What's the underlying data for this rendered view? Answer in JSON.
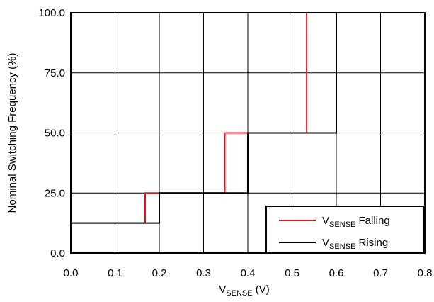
{
  "chart_data": {
    "type": "line",
    "step": true,
    "title": "",
    "xlabel": {
      "main": "V",
      "sub": "SENSE",
      "suffix": " (V)"
    },
    "ylabel": "Nominal Switching Frequency (%)",
    "xlim": [
      0,
      0.8
    ],
    "ylim": [
      0,
      100
    ],
    "xticks": [
      0.0,
      0.1,
      0.2,
      0.3,
      0.4,
      0.5,
      0.6,
      0.7,
      0.8
    ],
    "xtick_labels": [
      "0.0",
      "0.1",
      "0.2",
      "0.3",
      "0.4",
      "0.5",
      "0.6",
      "0.7",
      "0.8"
    ],
    "yticks": [
      0,
      25,
      50,
      75,
      100
    ],
    "ytick_labels": [
      "0.0",
      "25.0",
      "50.0",
      "75.0",
      "100.0"
    ],
    "grid": true,
    "legend_position": "bottom-right",
    "series": [
      {
        "name": {
          "main": "V",
          "sub": "SENSE",
          "suffix": " Falling"
        },
        "color": "#e8141b",
        "points": [
          [
            0.0,
            12.5
          ],
          [
            0.168,
            12.5
          ],
          [
            0.168,
            25.0
          ],
          [
            0.348,
            25.0
          ],
          [
            0.348,
            50.0
          ],
          [
            0.533,
            50.0
          ],
          [
            0.533,
            100.0
          ],
          [
            0.8,
            100.0
          ]
        ]
      },
      {
        "name": {
          "main": "V",
          "sub": "SENSE",
          "suffix": " Rising"
        },
        "color": "#000000",
        "points": [
          [
            0.0,
            12.5
          ],
          [
            0.2,
            12.5
          ],
          [
            0.2,
            25.0
          ],
          [
            0.4,
            25.0
          ],
          [
            0.4,
            50.0
          ],
          [
            0.6,
            50.0
          ],
          [
            0.6,
            100.0
          ],
          [
            0.8,
            100.0
          ]
        ]
      }
    ]
  }
}
